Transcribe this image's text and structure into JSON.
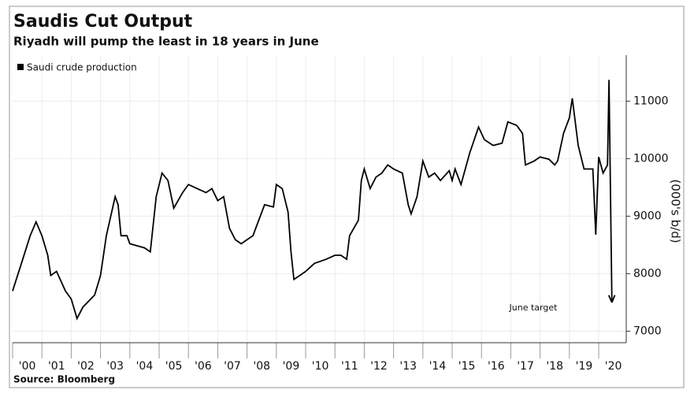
{
  "chart_data": {
    "type": "line",
    "title": "Saudis Cut Output",
    "subtitle": "Riyadh will pump the least in 18 years in June",
    "source": "Source: Bloomberg",
    "y_axis_label": "(000's b/d)",
    "annotation": "June target",
    "x": [
      2000.0,
      2000.3,
      2000.6,
      2000.8,
      2001.0,
      2001.2,
      2001.3,
      2001.5,
      2001.8,
      2002.0,
      2002.2,
      2002.4,
      2002.8,
      2003.0,
      2003.2,
      2003.5,
      2003.6,
      2003.7,
      2003.9,
      2004.0,
      2004.5,
      2004.7,
      2004.9,
      2005.1,
      2005.3,
      2005.5,
      2005.8,
      2006.0,
      2006.3,
      2006.6,
      2006.8,
      2007.0,
      2007.2,
      2007.4,
      2007.6,
      2007.8,
      2008.0,
      2008.2,
      2008.4,
      2008.6,
      2008.9,
      2009.0,
      2009.2,
      2009.4,
      2009.5,
      2009.6,
      2009.8,
      2010.0,
      2010.3,
      2010.7,
      2011.0,
      2011.2,
      2011.4,
      2011.5,
      2011.8,
      2011.9,
      2012.0,
      2012.2,
      2012.4,
      2012.6,
      2012.8,
      2013.0,
      2013.3,
      2013.5,
      2013.6,
      2013.8,
      2014.0,
      2014.2,
      2014.4,
      2014.6,
      2014.9,
      2015.0,
      2015.1,
      2015.3,
      2015.6,
      2015.9,
      2016.1,
      2016.4,
      2016.7,
      2016.9,
      2017.2,
      2017.4,
      2017.5,
      2017.8,
      2018.0,
      2018.3,
      2018.5,
      2018.6,
      2018.8,
      2019.0,
      2019.1,
      2019.3,
      2019.5,
      2019.8,
      2019.9,
      2020.0,
      2020.15,
      2020.3,
      2020.35,
      2020.45
    ],
    "series": [
      {
        "name": "Saudi crude production",
        "color": "#000000",
        "values": [
          7700,
          8180,
          8660,
          8900,
          8660,
          8320,
          7970,
          8040,
          7700,
          7560,
          7220,
          7420,
          7630,
          7970,
          8660,
          9340,
          9200,
          8660,
          8660,
          8520,
          8450,
          8380,
          9340,
          9750,
          9620,
          9140,
          9410,
          9550,
          9480,
          9410,
          9480,
          9270,
          9340,
          8790,
          8590,
          8520,
          8590,
          8660,
          8930,
          9200,
          9160,
          9550,
          9480,
          9070,
          8380,
          7900,
          7970,
          8040,
          8180,
          8250,
          8320,
          8320,
          8250,
          8660,
          8930,
          9620,
          9820,
          9480,
          9680,
          9750,
          9890,
          9820,
          9750,
          9200,
          9040,
          9340,
          9960,
          9680,
          9750,
          9620,
          9790,
          9620,
          9820,
          9550,
          10100,
          10550,
          10330,
          10230,
          10270,
          10640,
          10580,
          10440,
          9890,
          9960,
          10030,
          9990,
          9890,
          9960,
          10440,
          10710,
          11050,
          10230,
          9820,
          9820,
          8680,
          10030,
          9750,
          9890,
          11370,
          7500
        ]
      }
    ],
    "xlim": [
      2000,
      2020.94
    ],
    "xticks": [
      {
        "value": 2000,
        "label": "'00"
      },
      {
        "value": 2001,
        "label": "'01"
      },
      {
        "value": 2002,
        "label": "'02"
      },
      {
        "value": 2003,
        "label": "'03"
      },
      {
        "value": 2004,
        "label": "'04"
      },
      {
        "value": 2005,
        "label": "'05"
      },
      {
        "value": 2006,
        "label": "'06"
      },
      {
        "value": 2007,
        "label": "'07"
      },
      {
        "value": 2008,
        "label": "'08"
      },
      {
        "value": 2009,
        "label": "'09"
      },
      {
        "value": 2010,
        "label": "'10"
      },
      {
        "value": 2011,
        "label": "'11"
      },
      {
        "value": 2012,
        "label": "'12"
      },
      {
        "value": 2013,
        "label": "'13"
      },
      {
        "value": 2014,
        "label": "'14"
      },
      {
        "value": 2015,
        "label": "'15"
      },
      {
        "value": 2016,
        "label": "'16"
      },
      {
        "value": 2017,
        "label": "'17"
      },
      {
        "value": 2018,
        "label": "'18"
      },
      {
        "value": 2019,
        "label": "'19"
      },
      {
        "value": 2020,
        "label": "'20"
      }
    ],
    "ylim": [
      6800,
      11800
    ],
    "yticks": [
      7000,
      8000,
      9000,
      10000,
      11000
    ],
    "grid": true,
    "legend": "upper left"
  }
}
